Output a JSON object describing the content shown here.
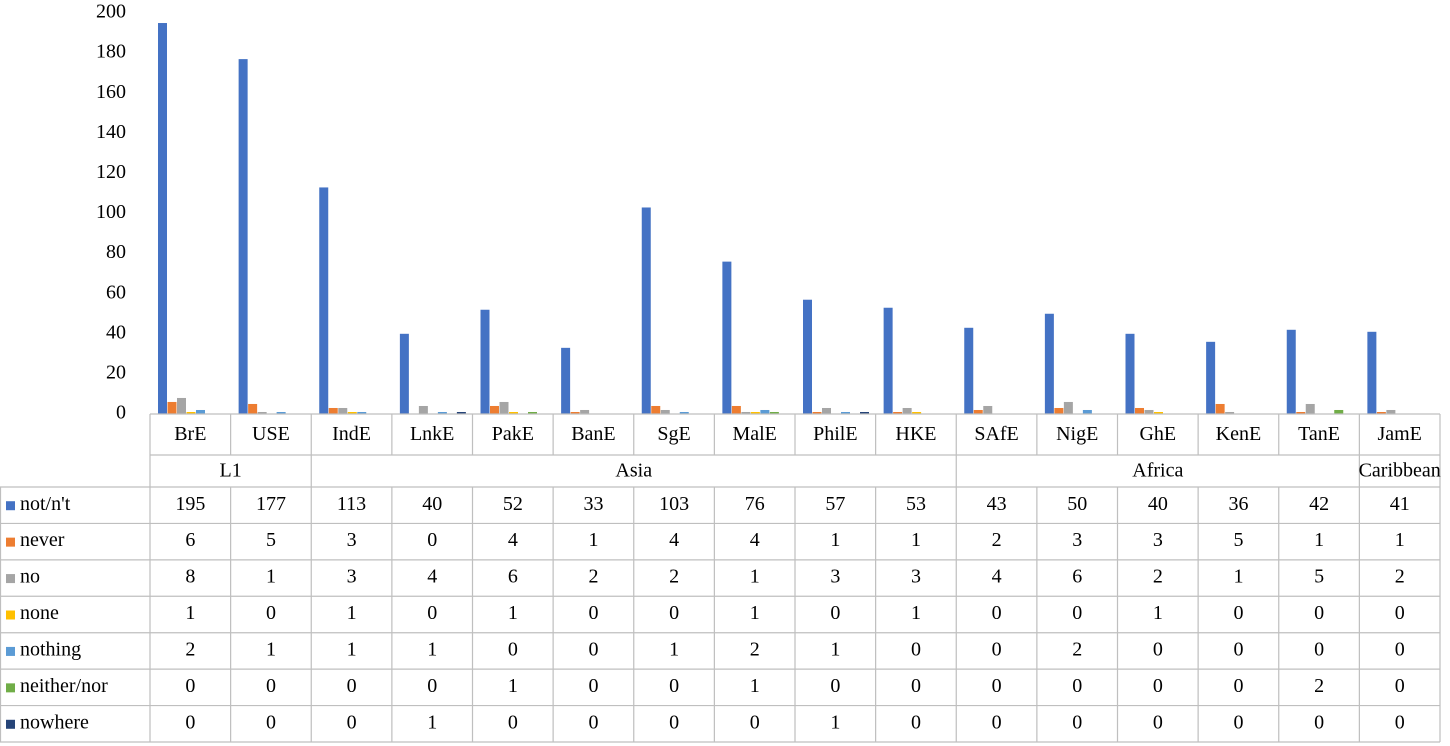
{
  "chart_data": {
    "type": "bar",
    "categories": [
      "BrE",
      "USE",
      "IndE",
      "LnkE",
      "PakE",
      "BanE",
      "SgE",
      "MalE",
      "PhilE",
      "HKE",
      "SAfE",
      "NigE",
      "GhE",
      "KenE",
      "TanE",
      "JamE"
    ],
    "groups": [
      {
        "name": "L1",
        "span": 2
      },
      {
        "name": "Asia",
        "span": 8
      },
      {
        "name": "Africa",
        "span": 5
      },
      {
        "name": "Caribbean",
        "span": 1
      }
    ],
    "series": [
      {
        "name": "not/n't",
        "color": "#4472c4",
        "values": [
          195,
          177,
          113,
          40,
          52,
          33,
          103,
          76,
          57,
          53,
          43,
          50,
          40,
          36,
          42,
          41
        ]
      },
      {
        "name": "never",
        "color": "#ed7d31",
        "values": [
          6,
          5,
          3,
          0,
          4,
          1,
          4,
          4,
          1,
          1,
          2,
          3,
          3,
          5,
          1,
          1
        ]
      },
      {
        "name": "no",
        "color": "#a5a5a5",
        "values": [
          8,
          1,
          3,
          4,
          6,
          2,
          2,
          1,
          3,
          3,
          4,
          6,
          2,
          1,
          5,
          2
        ]
      },
      {
        "name": "none",
        "color": "#ffc000",
        "values": [
          1,
          0,
          1,
          0,
          1,
          0,
          0,
          1,
          0,
          1,
          0,
          0,
          1,
          0,
          0,
          0
        ]
      },
      {
        "name": "nothing",
        "color": "#5b9bd5",
        "values": [
          2,
          1,
          1,
          1,
          0,
          0,
          1,
          2,
          1,
          0,
          0,
          2,
          0,
          0,
          0,
          0
        ]
      },
      {
        "name": "neither/nor",
        "color": "#70ad47",
        "values": [
          0,
          0,
          0,
          0,
          1,
          0,
          0,
          1,
          0,
          0,
          0,
          0,
          0,
          0,
          2,
          0
        ]
      },
      {
        "name": "nowhere",
        "color": "#264478",
        "values": [
          0,
          0,
          0,
          1,
          0,
          0,
          0,
          0,
          1,
          0,
          0,
          0,
          0,
          0,
          0,
          0
        ]
      }
    ],
    "ylim": [
      0,
      200
    ],
    "yticks": [
      0,
      20,
      40,
      60,
      80,
      100,
      120,
      140,
      160,
      180,
      200
    ],
    "grid": false
  }
}
